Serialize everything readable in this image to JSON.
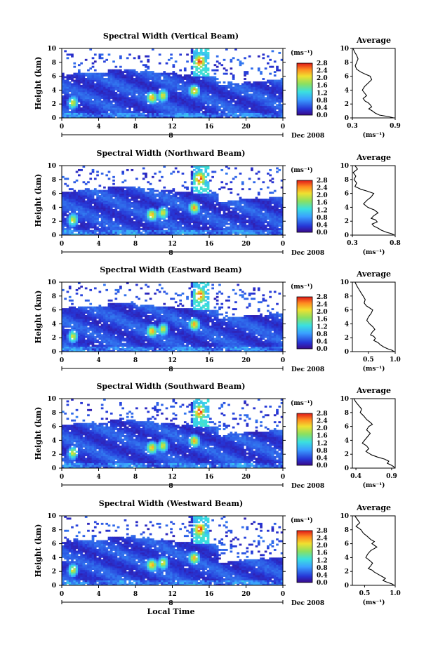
{
  "chart_data": [
    {
      "type": "heatmap",
      "title": "Spectral Width (Vertical Beam)",
      "ylabel": "Height (km)",
      "xlim": [
        0,
        24
      ],
      "ylim": [
        0,
        10
      ],
      "x_ticks": [
        "0",
        "4",
        "8",
        "12",
        "16",
        "20",
        "0"
      ],
      "y_ticks": [
        "0",
        "2",
        "4",
        "6",
        "8",
        "10"
      ],
      "date_ticks": [
        "8"
      ],
      "date_label": "Dec 2008",
      "colorbar": {
        "unit": "(ms⁻¹)",
        "ticks": [
          "0.0",
          "0.4",
          "0.8",
          "1.2",
          "1.6",
          "2.0",
          "2.4",
          "2.8"
        ],
        "range": [
          0,
          2.8
        ]
      },
      "average": {
        "title": "Average",
        "xlabel": "(ms⁻¹)",
        "x_ticks": [
          "0.3",
          "0.9"
        ],
        "xlim": [
          0.3,
          0.9
        ],
        "x": [
          0.31,
          0.33,
          0.36,
          0.38,
          0.36,
          0.34,
          0.36,
          0.42,
          0.48,
          0.55,
          0.57,
          0.52,
          0.47,
          0.44,
          0.47,
          0.5,
          0.45,
          0.48,
          0.52,
          0.55,
          0.57,
          0.53,
          0.58,
          0.62,
          0.68,
          0.8,
          0.88
        ],
        "y": [
          10,
          9.5,
          9,
          8.5,
          8,
          7.5,
          7,
          6.6,
          6.3,
          6,
          5.5,
          5,
          4.5,
          4,
          3.6,
          3.2,
          2.8,
          2.4,
          2.2,
          1.9,
          1.6,
          1.3,
          1,
          0.7,
          0.4,
          0.2,
          0
        ]
      }
    },
    {
      "type": "heatmap",
      "title": "Spectral Width (Northward Beam)",
      "ylabel": "Height (km)",
      "xlim": [
        0,
        24
      ],
      "ylim": [
        0,
        10
      ],
      "x_ticks": [
        "0",
        "4",
        "8",
        "12",
        "16",
        "20",
        "0"
      ],
      "y_ticks": [
        "0",
        "2",
        "4",
        "6",
        "8",
        "10"
      ],
      "date_ticks": [
        "8"
      ],
      "date_label": "Dec 2008",
      "colorbar": {
        "unit": "(ms⁻¹)",
        "ticks": [
          "0.0",
          "0.4",
          "0.8",
          "1.2",
          "1.6",
          "2.0",
          "2.4",
          "2.8"
        ],
        "range": [
          0,
          2.8
        ]
      },
      "average": {
        "title": "Average",
        "xlabel": "(ms⁻¹)",
        "x_ticks": [
          "0.3",
          "0.8"
        ],
        "xlim": [
          0.3,
          0.8
        ],
        "x": [
          0.33,
          0.36,
          0.31,
          0.34,
          0.32,
          0.35,
          0.33,
          0.4,
          0.48,
          0.55,
          0.52,
          0.47,
          0.43,
          0.48,
          0.56,
          0.6,
          0.55,
          0.52,
          0.57,
          0.59,
          0.53,
          0.55,
          0.6,
          0.64,
          0.7,
          0.76,
          0.79
        ],
        "y": [
          10,
          9.5,
          9,
          8.5,
          8,
          7.5,
          7,
          6.6,
          6.3,
          6,
          5.5,
          5,
          4.5,
          4,
          3.6,
          3.2,
          2.8,
          2.4,
          2.2,
          1.9,
          1.6,
          1.3,
          1,
          0.7,
          0.4,
          0.2,
          0
        ]
      }
    },
    {
      "type": "heatmap",
      "title": "Spectral Width (Eastward Beam)",
      "ylabel": "Height (km)",
      "xlim": [
        0,
        24
      ],
      "ylim": [
        0,
        10
      ],
      "x_ticks": [
        "0",
        "4",
        "8",
        "12",
        "16",
        "20",
        "0"
      ],
      "y_ticks": [
        "0",
        "2",
        "4",
        "6",
        "8",
        "10"
      ],
      "date_ticks": [
        "8"
      ],
      "date_label": "Dec 2008",
      "colorbar": {
        "unit": "(ms⁻¹)",
        "ticks": [
          "0.0",
          "0.4",
          "0.8",
          "1.2",
          "1.6",
          "2.0",
          "2.4",
          "2.8"
        ],
        "range": [
          0,
          2.8
        ]
      },
      "average": {
        "title": "Average",
        "xlabel": "(ms⁻¹)",
        "x_ticks": [
          "0.5",
          "1.0"
        ],
        "xlim": [
          0.2,
          1.0
        ],
        "x": [
          0.25,
          0.28,
          0.32,
          0.36,
          0.4,
          0.44,
          0.42,
          0.46,
          0.52,
          0.58,
          0.55,
          0.5,
          0.47,
          0.52,
          0.58,
          0.62,
          0.57,
          0.54,
          0.6,
          0.63,
          0.6,
          0.68,
          0.72,
          0.78,
          0.86,
          0.94,
          0.98
        ],
        "y": [
          10,
          9.5,
          9,
          8.5,
          8,
          7.5,
          7,
          6.6,
          6.3,
          6,
          5.5,
          5,
          4.5,
          4,
          3.6,
          3.2,
          2.8,
          2.4,
          2.2,
          1.9,
          1.6,
          1.3,
          1,
          0.7,
          0.4,
          0.2,
          0
        ]
      }
    },
    {
      "type": "heatmap",
      "title": "Spectral Width (Southward Beam)",
      "ylabel": "Height (km)",
      "xlim": [
        0,
        24
      ],
      "ylim": [
        0,
        10
      ],
      "x_ticks": [
        "0",
        "4",
        "8",
        "12",
        "16",
        "20",
        "0"
      ],
      "y_ticks": [
        "0",
        "2",
        "4",
        "6",
        "8",
        "10"
      ],
      "date_ticks": [
        "8"
      ],
      "date_label": "Dec 2008",
      "colorbar": {
        "unit": "(ms⁻¹)",
        "ticks": [
          "0.0",
          "0.4",
          "0.8",
          "1.2",
          "1.6",
          "2.0",
          "2.4",
          "2.8"
        ],
        "range": [
          0,
          2.8
        ]
      },
      "average": {
        "title": "Average",
        "xlabel": "(ms⁻¹)",
        "x_ticks": [
          "0.4",
          "0.9"
        ],
        "xlim": [
          0.35,
          0.95
        ],
        "x": [
          0.37,
          0.4,
          0.44,
          0.48,
          0.46,
          0.51,
          0.55,
          0.6,
          0.63,
          0.58,
          0.55,
          0.6,
          0.56,
          0.52,
          0.49,
          0.55,
          0.58,
          0.54,
          0.57,
          0.62,
          0.7,
          0.8,
          0.86,
          0.84,
          0.9,
          0.93,
          0.94
        ],
        "y": [
          10,
          9.5,
          9,
          8.5,
          8,
          7.5,
          7,
          6.6,
          6.3,
          6,
          5.5,
          5,
          4.5,
          4,
          3.6,
          3.2,
          2.8,
          2.4,
          2.2,
          1.9,
          1.6,
          1.3,
          1,
          0.7,
          0.4,
          0.2,
          0
        ]
      }
    },
    {
      "type": "heatmap",
      "title": "Spectral Width (Westward Beam)",
      "ylabel": "Height (km)",
      "xlabel": "Local Time",
      "xlim": [
        0,
        24
      ],
      "ylim": [
        0,
        10
      ],
      "x_ticks": [
        "0",
        "4",
        "8",
        "12",
        "16",
        "20",
        "0"
      ],
      "y_ticks": [
        "0",
        "2",
        "4",
        "6",
        "8",
        "10"
      ],
      "date_ticks": [
        "8"
      ],
      "date_label": "Dec 2008",
      "colorbar": {
        "unit": "(ms⁻¹)",
        "ticks": [
          "0.0",
          "0.4",
          "0.8",
          "1.2",
          "1.6",
          "2.0",
          "2.4",
          "2.8"
        ],
        "range": [
          0,
          2.8
        ]
      },
      "average": {
        "title": "Average",
        "xlabel": "(ms⁻¹)",
        "x_ticks": [
          "0.5",
          "1.0"
        ],
        "xlim": [
          0.3,
          1.0
        ],
        "x": [
          0.34,
          0.38,
          0.42,
          0.36,
          0.44,
          0.48,
          0.55,
          0.6,
          0.66,
          0.62,
          0.7,
          0.6,
          0.55,
          0.52,
          0.58,
          0.63,
          0.6,
          0.56,
          0.62,
          0.66,
          0.72,
          0.78,
          0.84,
          0.8,
          0.88,
          0.95,
          0.98
        ],
        "y": [
          10,
          9.5,
          9,
          8.5,
          8,
          7.5,
          7,
          6.6,
          6.3,
          6,
          5.5,
          5,
          4.5,
          4,
          3.6,
          3.2,
          2.8,
          2.4,
          2.2,
          1.9,
          1.6,
          1.3,
          1,
          0.7,
          0.4,
          0.2,
          0
        ]
      }
    }
  ]
}
